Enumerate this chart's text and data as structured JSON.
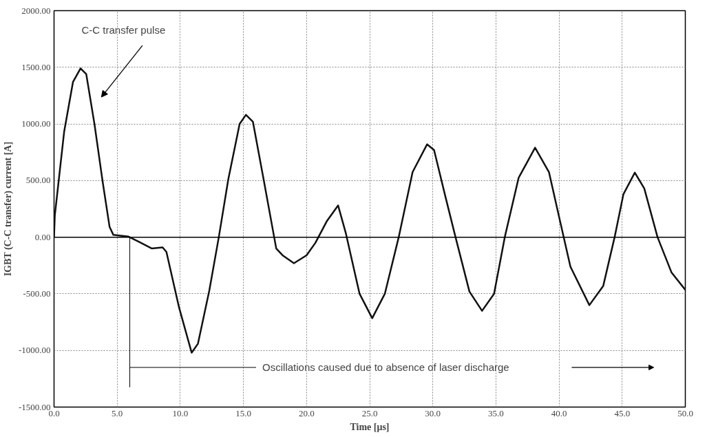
{
  "chart_data": {
    "type": "line",
    "xlabel": "Time [μs]",
    "ylabel": "IGBT (C-C transfer) current [A]",
    "xlim": [
      0,
      50
    ],
    "ylim": [
      -1500,
      2000
    ],
    "xticks": [
      {
        "value": 0,
        "label": "0.0"
      },
      {
        "value": 5,
        "label": "5.0"
      },
      {
        "value": 10,
        "label": "10.0"
      },
      {
        "value": 15,
        "label": "15.0"
      },
      {
        "value": 20,
        "label": "20.0"
      },
      {
        "value": 25,
        "label": "25.0"
      },
      {
        "value": 30,
        "label": "30.0"
      },
      {
        "value": 35,
        "label": "35.0"
      },
      {
        "value": 40,
        "label": "40.0"
      },
      {
        "value": 45,
        "label": "45.0"
      },
      {
        "value": 50,
        "label": "50.0"
      }
    ],
    "yticks": [
      {
        "value": -1500,
        "label": "-1500.00"
      },
      {
        "value": -1000,
        "label": "-1000.00"
      },
      {
        "value": -500,
        "label": "-500.00"
      },
      {
        "value": 0,
        "label": "0.00"
      },
      {
        "value": 500,
        "label": "500.00"
      },
      {
        "value": 1000,
        "label": "1000.00"
      },
      {
        "value": 1500,
        "label": "1500.00"
      },
      {
        "value": 2000,
        "label": "2000.00"
      }
    ],
    "grid": true,
    "marker": "none",
    "line_style": "solid",
    "ref_lines": [
      {
        "axis": "y",
        "value": 0,
        "color": "#000000"
      },
      {
        "axis": "x",
        "value": 6,
        "color": "#000000",
        "label": "Oscillations caused due to absence of laser discharge"
      }
    ],
    "annotations": [
      "C-C transfer pulse"
    ],
    "series": [
      {
        "color": "#111111",
        "x": [
          0,
          0.06,
          0.8,
          1.5,
          2.1,
          2.55,
          3.2,
          3.85,
          4.4,
          4.7,
          5.9,
          6.7,
          7.75,
          8.6,
          8.9,
          9.9,
          10.9,
          11.4,
          12.3,
          13.05,
          13.8,
          14.7,
          15.2,
          15.75,
          16.6,
          17.6,
          18.1,
          19.0,
          20.0,
          20.7,
          21.6,
          22.5,
          23.1,
          24.2,
          25.2,
          26.2,
          27.3,
          28.4,
          29.55,
          30.1,
          30.95,
          31.8,
          32.9,
          33.9,
          34.85,
          35.7,
          36.8,
          38.1,
          39.2,
          40.0,
          40.9,
          42.4,
          43.5,
          44.4,
          45.1,
          46.0,
          46.75,
          47.8,
          48.9,
          50
        ],
        "values": [
          0,
          190,
          930,
          1370,
          1490,
          1440,
          1000,
          490,
          90,
          20,
          5,
          -40,
          -100,
          -90,
          -130,
          -620,
          -1020,
          -940,
          -470,
          0,
          510,
          1000,
          1080,
          1020,
          510,
          -100,
          -160,
          -230,
          -160,
          -50,
          140,
          280,
          40,
          -500,
          -715,
          -500,
          0,
          575,
          820,
          770,
          380,
          0,
          -480,
          -650,
          -500,
          0,
          525,
          790,
          575,
          180,
          -260,
          -600,
          -430,
          0,
          380,
          570,
          430,
          0,
          -310,
          -465
        ]
      }
    ]
  }
}
